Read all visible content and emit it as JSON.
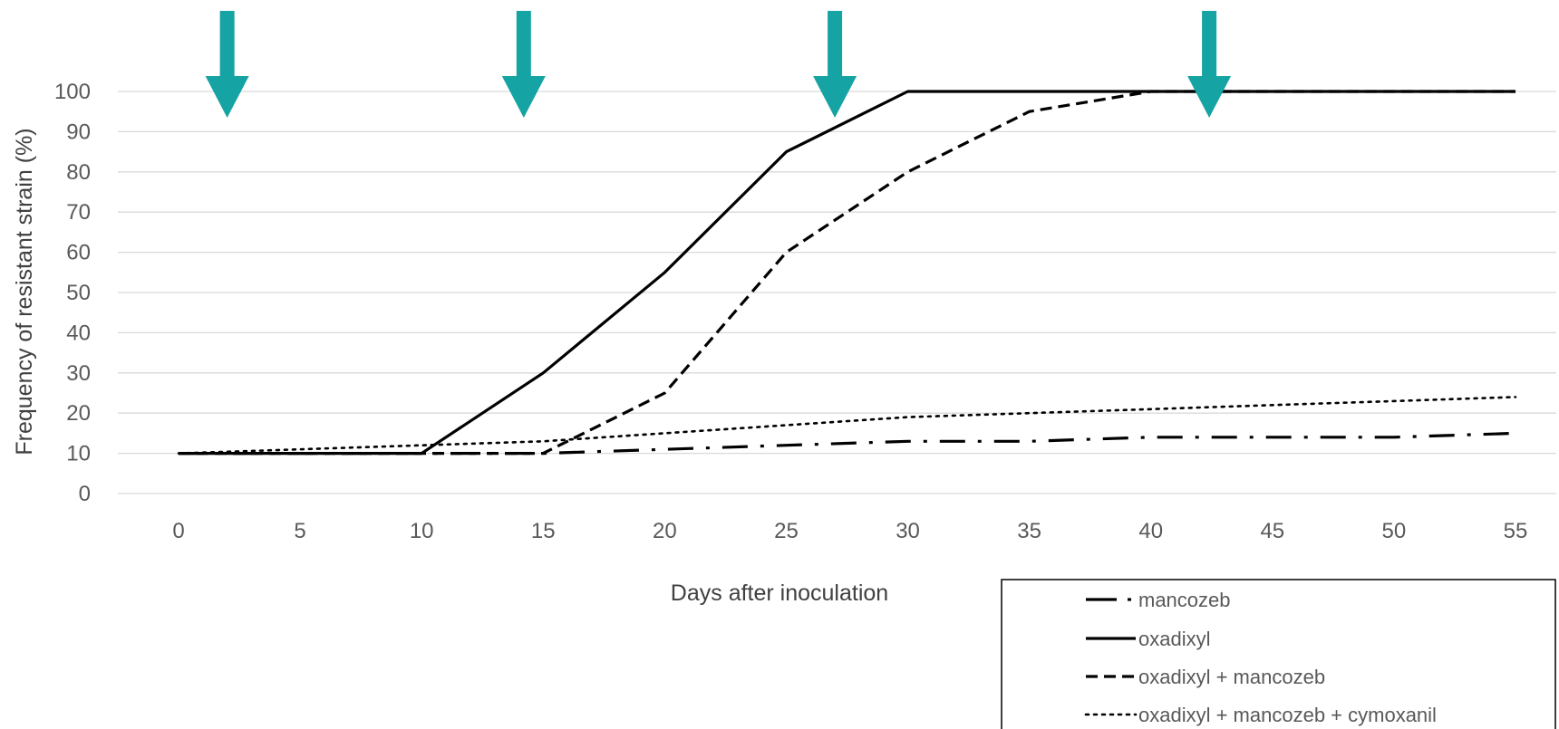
{
  "chart_data": {
    "type": "line",
    "title": "",
    "xlabel": "Days after inoculation",
    "ylabel": "Frequency of resistant strain (%)",
    "xlim": [
      0,
      55
    ],
    "ylim": [
      0,
      100
    ],
    "x_ticks": [
      0,
      5,
      10,
      15,
      20,
      25,
      30,
      35,
      40,
      45,
      50,
      55
    ],
    "y_ticks": [
      0,
      10,
      20,
      30,
      40,
      50,
      60,
      70,
      80,
      90,
      100
    ],
    "grid": "horizontal",
    "legend_position": "bottom-right",
    "series": [
      {
        "name": "mancozeb",
        "dash": "long-dash-dot",
        "points": [
          [
            0,
            10
          ],
          [
            10,
            10
          ],
          [
            15,
            10
          ],
          [
            20,
            11
          ],
          [
            25,
            12
          ],
          [
            30,
            13
          ],
          [
            35,
            13
          ],
          [
            40,
            14
          ],
          [
            45,
            14
          ],
          [
            50,
            14
          ],
          [
            55,
            15
          ]
        ]
      },
      {
        "name": "oxadixyl",
        "dash": "solid",
        "points": [
          [
            0,
            10
          ],
          [
            10,
            10
          ],
          [
            15,
            30
          ],
          [
            20,
            55
          ],
          [
            25,
            85
          ],
          [
            30,
            100
          ],
          [
            35,
            100
          ],
          [
            40,
            100
          ],
          [
            45,
            100
          ],
          [
            50,
            100
          ],
          [
            55,
            100
          ]
        ]
      },
      {
        "name": "oxadixyl + mancozeb",
        "dash": "dash",
        "points": [
          [
            0,
            10
          ],
          [
            10,
            10
          ],
          [
            15,
            10
          ],
          [
            20,
            25
          ],
          [
            25,
            60
          ],
          [
            30,
            80
          ],
          [
            35,
            95
          ],
          [
            40,
            100
          ],
          [
            45,
            100
          ],
          [
            50,
            100
          ],
          [
            55,
            100
          ]
        ]
      },
      {
        "name": "oxadixyl + mancozeb + cymoxanil",
        "dash": "dot",
        "points": [
          [
            0,
            10
          ],
          [
            10,
            12
          ],
          [
            15,
            13
          ],
          [
            20,
            15
          ],
          [
            25,
            17
          ],
          [
            30,
            19
          ],
          [
            35,
            20
          ],
          [
            40,
            21
          ],
          [
            45,
            22
          ],
          [
            50,
            23
          ],
          [
            55,
            24
          ]
        ]
      }
    ],
    "application_arrows": {
      "color": "#16A3A3",
      "x": [
        2,
        14.2,
        27,
        42.4
      ]
    }
  }
}
